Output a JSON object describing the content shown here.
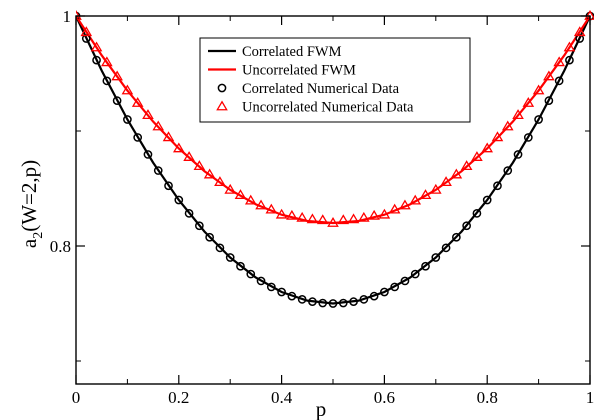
{
  "chart_data": {
    "type": "line",
    "xlabel": "p",
    "ylabel": "a",
    "ylabel_sub": "2",
    "ylabel_rest": "(W=2,p)",
    "xlim": [
      0,
      1
    ],
    "ylim": [
      0.68,
      1.0
    ],
    "x_ticks": [
      0,
      0.2,
      0.4,
      0.6,
      0.8,
      1
    ],
    "x_tick_labels": [
      "0",
      "0.2",
      "0.4",
      "0.6",
      "0.8",
      "1"
    ],
    "y_ticks": [
      0.8,
      1.0
    ],
    "y_tick_labels": [
      "0.8",
      "1"
    ],
    "grid": false,
    "legend_position": "top-center",
    "series": [
      {
        "name": "Correlated FWM",
        "style": "line",
        "color": "#000000",
        "x": [
          0,
          0.05,
          0.1,
          0.15,
          0.2,
          0.25,
          0.3,
          0.35,
          0.4,
          0.45,
          0.5,
          0.55,
          0.6,
          0.65,
          0.7,
          0.75,
          0.8,
          0.85,
          0.9,
          0.95,
          1
        ],
        "y": [
          1.0,
          0.9525,
          0.91,
          0.8725,
          0.84,
          0.8125,
          0.79,
          0.7725,
          0.76,
          0.7525,
          0.75,
          0.7525,
          0.76,
          0.7725,
          0.79,
          0.8125,
          0.84,
          0.8725,
          0.91,
          0.9525,
          1.0
        ]
      },
      {
        "name": "Uncorrelated FWM",
        "style": "line",
        "color": "#ff0000",
        "x": [
          0,
          0.05,
          0.1,
          0.15,
          0.2,
          0.25,
          0.3,
          0.35,
          0.4,
          0.45,
          0.5,
          0.55,
          0.6,
          0.65,
          0.7,
          0.75,
          0.8,
          0.85,
          0.9,
          0.95,
          1
        ],
        "y": [
          1.0,
          0.9658,
          0.9352,
          0.9082,
          0.8848,
          0.865,
          0.8488,
          0.8362,
          0.8272,
          0.8218,
          0.82,
          0.8218,
          0.8272,
          0.8362,
          0.8488,
          0.865,
          0.8848,
          0.9082,
          0.9352,
          0.9658,
          1.0
        ]
      },
      {
        "name": "Correlated Numerical Data",
        "style": "marker-circle",
        "color": "#000000",
        "x": [
          0,
          0.02,
          0.04,
          0.06,
          0.08,
          0.1,
          0.12,
          0.14,
          0.16,
          0.18,
          0.2,
          0.22,
          0.24,
          0.26,
          0.28,
          0.3,
          0.32,
          0.34,
          0.36,
          0.38,
          0.4,
          0.42,
          0.44,
          0.46,
          0.48,
          0.5,
          0.52,
          0.54,
          0.56,
          0.58,
          0.6,
          0.62,
          0.64,
          0.66,
          0.68,
          0.7,
          0.72,
          0.74,
          0.76,
          0.78,
          0.8,
          0.82,
          0.84,
          0.86,
          0.88,
          0.9,
          0.92,
          0.94,
          0.96,
          0.98,
          1
        ],
        "y": [
          1.0,
          0.9804,
          0.9616,
          0.9436,
          0.9264,
          0.91,
          0.8944,
          0.8796,
          0.8656,
          0.8524,
          0.84,
          0.8284,
          0.8176,
          0.8076,
          0.7984,
          0.79,
          0.7824,
          0.7756,
          0.7696,
          0.7644,
          0.76,
          0.7564,
          0.7536,
          0.7516,
          0.7504,
          0.75,
          0.7504,
          0.7516,
          0.7536,
          0.7564,
          0.76,
          0.7644,
          0.7696,
          0.7756,
          0.7824,
          0.79,
          0.7984,
          0.8076,
          0.8176,
          0.8284,
          0.84,
          0.8524,
          0.8656,
          0.8796,
          0.8944,
          0.91,
          0.9264,
          0.9436,
          0.9616,
          0.9804,
          1.0
        ]
      },
      {
        "name": "Uncorrelated Numerical Data",
        "style": "marker-triangle",
        "color": "#ff0000",
        "x": [
          0,
          0.02,
          0.04,
          0.06,
          0.08,
          0.1,
          0.12,
          0.14,
          0.16,
          0.18,
          0.2,
          0.22,
          0.24,
          0.26,
          0.28,
          0.3,
          0.32,
          0.34,
          0.36,
          0.38,
          0.4,
          0.42,
          0.44,
          0.46,
          0.48,
          0.5,
          0.52,
          0.54,
          0.56,
          0.58,
          0.6,
          0.62,
          0.64,
          0.66,
          0.68,
          0.7,
          0.72,
          0.74,
          0.76,
          0.78,
          0.8,
          0.82,
          0.84,
          0.86,
          0.88,
          0.9,
          0.92,
          0.94,
          0.96,
          0.98,
          1
        ],
        "y": [
          1.0,
          0.9859,
          0.9726,
          0.9597,
          0.9474,
          0.9352,
          0.9243,
          0.9138,
          0.9039,
          0.8945,
          0.8848,
          0.8773,
          0.8694,
          0.8621,
          0.8555,
          0.8488,
          0.8442,
          0.8394,
          0.8352,
          0.8316,
          0.8272,
          0.8262,
          0.8244,
          0.8231,
          0.8224,
          0.82,
          0.8224,
          0.8231,
          0.8244,
          0.8262,
          0.8272,
          0.8316,
          0.8352,
          0.8394,
          0.8442,
          0.8488,
          0.8555,
          0.8621,
          0.8694,
          0.8773,
          0.8848,
          0.8945,
          0.9039,
          0.9138,
          0.9243,
          0.9352,
          0.9474,
          0.9597,
          0.9726,
          0.9859,
          1.0
        ]
      }
    ]
  }
}
